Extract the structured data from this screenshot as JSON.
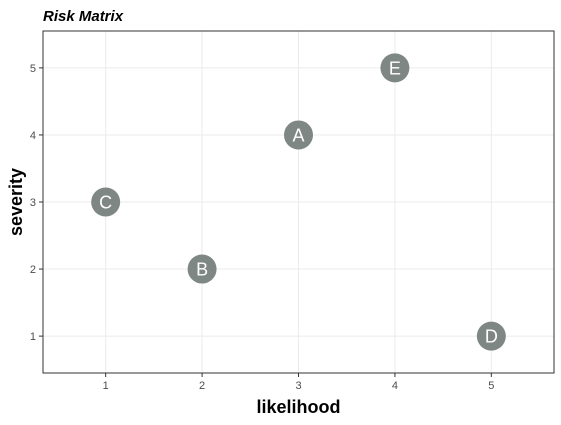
{
  "chart_data": {
    "type": "scatter",
    "title": "Risk Matrix",
    "xlabel": "likelihood",
    "ylabel": "severity",
    "xlim": [
      0.35,
      5.65
    ],
    "ylim": [
      0.45,
      5.55
    ],
    "xticks": [
      1,
      2,
      3,
      4,
      5
    ],
    "yticks": [
      1,
      2,
      3,
      4,
      5
    ],
    "grid": true,
    "legend": "none",
    "point_color": "#7f8784",
    "label_color": "#ffffff",
    "points": [
      {
        "label": "A",
        "x": 3,
        "y": 4
      },
      {
        "label": "B",
        "x": 2,
        "y": 2
      },
      {
        "label": "C",
        "x": 1,
        "y": 3
      },
      {
        "label": "D",
        "x": 5,
        "y": 1
      },
      {
        "label": "E",
        "x": 4,
        "y": 5
      }
    ]
  }
}
